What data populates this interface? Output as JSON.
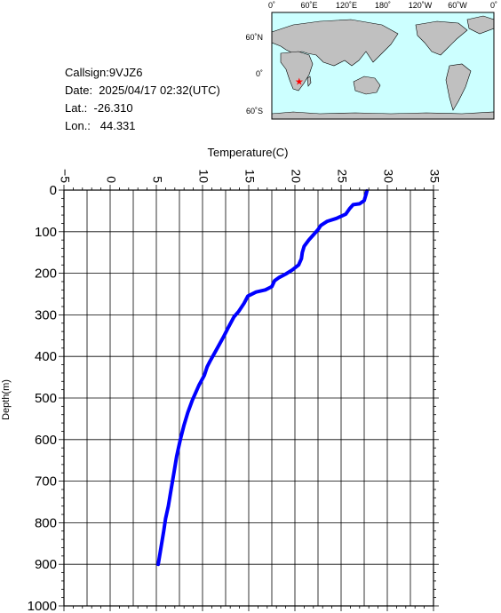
{
  "info": {
    "callsign": "Callsign:9VJZ6",
    "date": "Date:  2025/04/17 02:32(UTC)",
    "lat": "Lat.:  -26.310",
    "lon": "Lon.:   44.331"
  },
  "map": {
    "top_labels": [
      "0˚",
      "60˚E",
      "120˚E",
      "180˚",
      "120˚W",
      "60˚W",
      "0˚"
    ],
    "left_labels": [
      "60˚N",
      "0˚",
      "60˚S"
    ],
    "ocean_color": "#ccffff",
    "land_color": "#c0c0c0",
    "marker": {
      "lon": 44.331,
      "lat": -26.31,
      "symbol": "★",
      "color": "#ff0000"
    }
  },
  "chart_data": {
    "type": "line",
    "title": "Temperature(C)",
    "xlabel": "Temperature(C)",
    "ylabel": "Depth(m)",
    "xlim": [
      -5,
      35
    ],
    "ylim": [
      0,
      1000
    ],
    "y_inverted": true,
    "x_ticks": [
      -5,
      0,
      5,
      10,
      15,
      20,
      25,
      30,
      35
    ],
    "y_ticks": [
      0,
      100,
      200,
      300,
      400,
      500,
      600,
      700,
      800,
      900,
      1000
    ],
    "x_tick_labels": [
      "−5",
      "0",
      "5",
      "10",
      "15",
      "20",
      "25",
      "30",
      "35"
    ],
    "y_tick_labels": [
      "0",
      "100",
      "200",
      "300",
      "400",
      "500",
      "600",
      "700",
      "800",
      "900",
      "1000"
    ],
    "grid": true,
    "series": [
      {
        "color": "#0000ff",
        "points": [
          [
            27.8,
            2
          ],
          [
            27.7,
            10
          ],
          [
            27.5,
            25
          ],
          [
            27.0,
            33
          ],
          [
            26.3,
            35
          ],
          [
            25.9,
            45
          ],
          [
            25.5,
            58
          ],
          [
            24.5,
            68
          ],
          [
            23.5,
            75
          ],
          [
            22.8,
            85
          ],
          [
            22.5,
            95
          ],
          [
            21.9,
            110
          ],
          [
            21.5,
            120
          ],
          [
            21.0,
            135
          ],
          [
            20.8,
            150
          ],
          [
            20.7,
            165
          ],
          [
            20.4,
            180
          ],
          [
            19.7,
            192
          ],
          [
            19.0,
            202
          ],
          [
            18.3,
            210
          ],
          [
            17.8,
            218
          ],
          [
            17.5,
            232
          ],
          [
            16.8,
            240
          ],
          [
            15.8,
            245
          ],
          [
            14.9,
            255
          ],
          [
            14.5,
            272
          ],
          [
            13.9,
            292
          ],
          [
            13.4,
            305
          ],
          [
            12.8,
            330
          ],
          [
            12.3,
            352
          ],
          [
            11.8,
            372
          ],
          [
            11.3,
            392
          ],
          [
            10.8,
            412
          ],
          [
            10.5,
            425
          ],
          [
            10.2,
            445
          ],
          [
            9.6,
            470
          ],
          [
            8.9,
            505
          ],
          [
            8.4,
            535
          ],
          [
            8.0,
            565
          ],
          [
            7.6,
            600
          ],
          [
            7.2,
            640
          ],
          [
            6.9,
            680
          ],
          [
            6.6,
            720
          ],
          [
            6.3,
            760
          ],
          [
            6.0,
            790
          ],
          [
            5.8,
            820
          ],
          [
            5.5,
            860
          ],
          [
            5.2,
            900
          ]
        ]
      }
    ]
  }
}
